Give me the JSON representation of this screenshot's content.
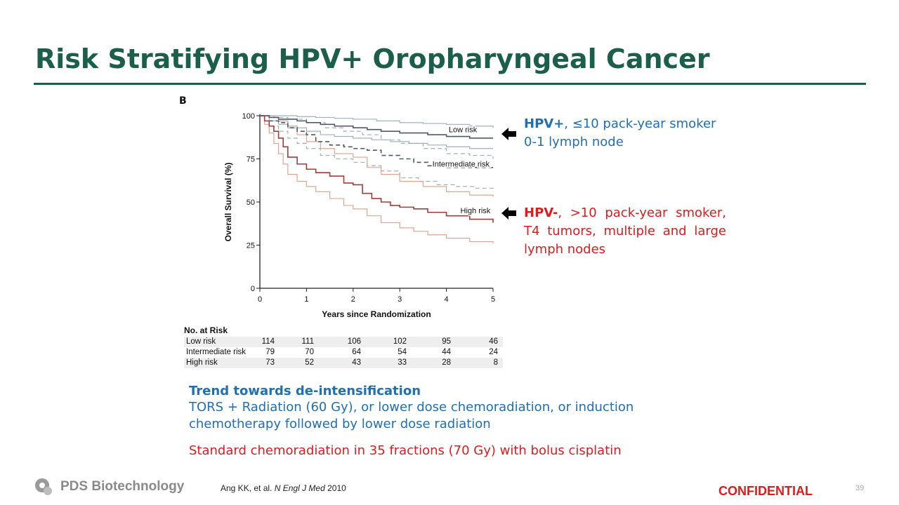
{
  "slide": {
    "title": "Risk Stratifying HPV+ Oropharyngeal Cancer",
    "page_number": "39",
    "confidential": "CONFIDENTIAL",
    "company": "PDS Biotechnology",
    "citation": {
      "authors": "Ang KK, et al.",
      "journal": "N Engl J Med",
      "year": "2010"
    }
  },
  "figure": {
    "panel_letter": "B"
  },
  "annotations": {
    "hpv_pos": {
      "bold": "HPV+",
      "rest": ", ≤10 pack-year smoker",
      "line2": "0-1 lymph node"
    },
    "hpv_neg": {
      "bold": "HPV-",
      "rest": ", >10 pack-year smoker, T4 tumors, multiple and large lymph nodes"
    }
  },
  "bottom": {
    "heading": "Trend towards de-intensification",
    "blue_text": "TORS + Radiation (60 Gy), or lower dose chemoradiation, or induction chemotherapy followed by lower dose radiation",
    "red_text": "Standard chemoradiation in 35 fractions (70 Gy) with bolus cisplatin"
  },
  "colors": {
    "title": "#1b5e4a",
    "blue": "#1f6fb4",
    "red": "#e01b1b",
    "low": "#7d8e9c",
    "intermediate": "#4f5a66",
    "high": "#a53a3a",
    "high_ci": "#e0a58f"
  },
  "chart_data": {
    "type": "line",
    "title": "",
    "xlabel": "Years since Randomization",
    "ylabel": "Overall Survival (%)",
    "xlim": [
      0,
      5
    ],
    "ylim": [
      0,
      100
    ],
    "xticks": [
      0,
      1,
      2,
      3,
      4,
      5
    ],
    "yticks": [
      0,
      25,
      50,
      75,
      100
    ],
    "series": [
      {
        "name": "Low risk",
        "label": "Low risk",
        "style": "solid",
        "color": "#4f5a66",
        "x": [
          0,
          0.2,
          0.4,
          0.6,
          0.8,
          1.0,
          1.3,
          1.6,
          2.0,
          2.3,
          2.6,
          3.0,
          3.3,
          3.6,
          4.0,
          4.5,
          5.0
        ],
        "y": [
          100,
          99,
          98,
          98,
          97,
          96,
          95,
          94,
          93,
          92,
          91,
          90,
          90,
          89,
          88,
          87,
          87
        ]
      },
      {
        "name": "Low risk CI upper",
        "style": "solid",
        "color": "#9fb0bd",
        "x": [
          0,
          0.4,
          0.8,
          1.2,
          1.6,
          2.0,
          2.5,
          3.0,
          3.5,
          4.0,
          4.5,
          5.0
        ],
        "y": [
          100,
          100,
          99.5,
          99,
          98.5,
          98,
          97,
          96,
          95.5,
          95,
          94,
          93
        ]
      },
      {
        "name": "Low risk CI lower",
        "style": "solid",
        "color": "#9fb0bd",
        "x": [
          0,
          0.2,
          0.4,
          0.6,
          0.8,
          1.0,
          1.3,
          1.6,
          2.0,
          2.4,
          2.8,
          3.2,
          3.6,
          4.0,
          4.5,
          5.0
        ],
        "y": [
          100,
          97,
          95,
          94,
          93,
          91,
          89,
          88,
          87,
          86,
          85,
          84,
          83,
          82,
          81,
          81
        ]
      },
      {
        "name": "Intermediate risk",
        "label": "Intermediate risk",
        "style": "dashed",
        "color": "#4f5a66",
        "x": [
          0,
          0.2,
          0.4,
          0.6,
          0.8,
          1.0,
          1.2,
          1.5,
          1.8,
          2.0,
          2.3,
          2.6,
          3.0,
          3.3,
          3.6,
          4.0,
          4.5,
          5.0
        ],
        "y": [
          100,
          97,
          96,
          93,
          91,
          89,
          85,
          83,
          82,
          81,
          80,
          77,
          75,
          73,
          71,
          70,
          70,
          70
        ]
      },
      {
        "name": "Intermediate risk CI upper",
        "style": "dashed",
        "color": "#9fb0bd",
        "x": [
          0,
          0.3,
          0.6,
          1.0,
          1.4,
          1.8,
          2.2,
          2.6,
          3.0,
          3.5,
          4.0,
          4.5,
          5.0
        ],
        "y": [
          100,
          99,
          98,
          96,
          93,
          91,
          89,
          86,
          84,
          81,
          78,
          77,
          75
        ]
      },
      {
        "name": "Intermediate risk CI lower",
        "style": "dashed",
        "color": "#9fb0bd",
        "x": [
          0,
          0.2,
          0.4,
          0.6,
          0.8,
          1.0,
          1.3,
          1.6,
          2.0,
          2.3,
          2.6,
          3.0,
          3.4,
          3.8,
          4.2,
          4.6,
          5.0
        ],
        "y": [
          100,
          94,
          91,
          87,
          84,
          81,
          77,
          75,
          73,
          71,
          68,
          64,
          62,
          60,
          59,
          58,
          56
        ]
      },
      {
        "name": "High risk",
        "label": "High risk",
        "style": "solid",
        "color": "#a53a3a",
        "x": [
          0,
          0.1,
          0.2,
          0.3,
          0.4,
          0.5,
          0.6,
          0.8,
          1.0,
          1.2,
          1.5,
          1.8,
          2.0,
          2.2,
          2.4,
          2.6,
          2.8,
          3.0,
          3.3,
          3.6,
          4.0,
          4.5,
          5.0
        ],
        "y": [
          100,
          97,
          94,
          91,
          87,
          82,
          76,
          72,
          69,
          67,
          65,
          61,
          60,
          55,
          52,
          50,
          48,
          47,
          46,
          44,
          42,
          40,
          38
        ]
      },
      {
        "name": "High risk CI upper",
        "style": "solid",
        "color": "#e0a58f",
        "x": [
          0,
          0.2,
          0.4,
          0.6,
          0.8,
          1.0,
          1.3,
          1.6,
          2.0,
          2.3,
          2.6,
          3.0,
          3.5,
          4.0,
          4.5,
          5.0
        ],
        "y": [
          100,
          99,
          97,
          93,
          89,
          85,
          81,
          78,
          76,
          70,
          66,
          62,
          59,
          56,
          54,
          53
        ]
      },
      {
        "name": "High risk CI lower",
        "style": "solid",
        "color": "#e0a58f",
        "x": [
          0,
          0.1,
          0.2,
          0.3,
          0.4,
          0.5,
          0.6,
          0.8,
          1.0,
          1.2,
          1.5,
          1.8,
          2.0,
          2.3,
          2.6,
          3.0,
          3.3,
          3.6,
          4.0,
          4.5,
          5.0
        ],
        "y": [
          100,
          95,
          90,
          84,
          78,
          72,
          66,
          62,
          59,
          56,
          52,
          48,
          46,
          42,
          38,
          35,
          33,
          31,
          29,
          27,
          26
        ]
      }
    ],
    "curve_labels": [
      {
        "text": "Low risk",
        "x": 4.05,
        "y": 90.5
      },
      {
        "text": "Intermediate risk",
        "x": 3.7,
        "y": 70.5
      },
      {
        "text": "High risk",
        "x": 4.3,
        "y": 43.5
      }
    ],
    "number_at_risk": {
      "title": "No. at Risk",
      "years": [
        0,
        1,
        2,
        3,
        4,
        5
      ],
      "rows": [
        {
          "label": "Low risk",
          "values": [
            "114",
            "111",
            "106",
            "102",
            "95",
            "46"
          ]
        },
        {
          "label": "Intermediate risk",
          "values": [
            "79",
            "70",
            "64",
            "54",
            "44",
            "24"
          ]
        },
        {
          "label": "High risk",
          "values": [
            "73",
            "52",
            "43",
            "33",
            "28",
            "8"
          ]
        }
      ]
    }
  }
}
